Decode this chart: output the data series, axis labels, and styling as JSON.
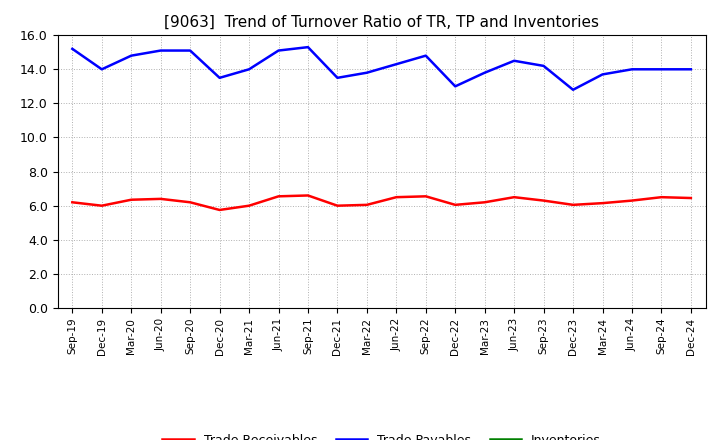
{
  "title": "[9063]  Trend of Turnover Ratio of TR, TP and Inventories",
  "x_labels": [
    "Sep-19",
    "Dec-19",
    "Mar-20",
    "Jun-20",
    "Sep-20",
    "Dec-20",
    "Mar-21",
    "Jun-21",
    "Sep-21",
    "Dec-21",
    "Mar-22",
    "Jun-22",
    "Sep-22",
    "Dec-22",
    "Mar-23",
    "Jun-23",
    "Sep-23",
    "Dec-23",
    "Mar-24",
    "Jun-24",
    "Sep-24",
    "Dec-24"
  ],
  "trade_receivables": [
    6.2,
    6.0,
    6.35,
    6.4,
    6.2,
    5.75,
    6.0,
    6.55,
    6.6,
    6.0,
    6.05,
    6.5,
    6.55,
    6.05,
    6.2,
    6.5,
    6.3,
    6.05,
    6.15,
    6.3,
    6.5,
    6.45
  ],
  "trade_payables": [
    15.2,
    14.0,
    14.8,
    15.1,
    15.1,
    13.5,
    14.0,
    15.1,
    15.3,
    13.5,
    13.8,
    14.3,
    14.8,
    13.0,
    13.8,
    14.5,
    14.2,
    12.8,
    13.7,
    14.0,
    14.0,
    14.0
  ],
  "inventories_visible": false,
  "ylim": [
    0.0,
    16.0
  ],
  "yticks": [
    0.0,
    2.0,
    4.0,
    6.0,
    8.0,
    10.0,
    12.0,
    14.0,
    16.0
  ],
  "tr_color": "#ff0000",
  "tp_color": "#0000ff",
  "inv_color": "#008000",
  "background_color": "#ffffff",
  "grid_color": "#b0b0b0",
  "title_fontsize": 11,
  "legend_labels": [
    "Trade Receivables",
    "Trade Payables",
    "Inventories"
  ]
}
